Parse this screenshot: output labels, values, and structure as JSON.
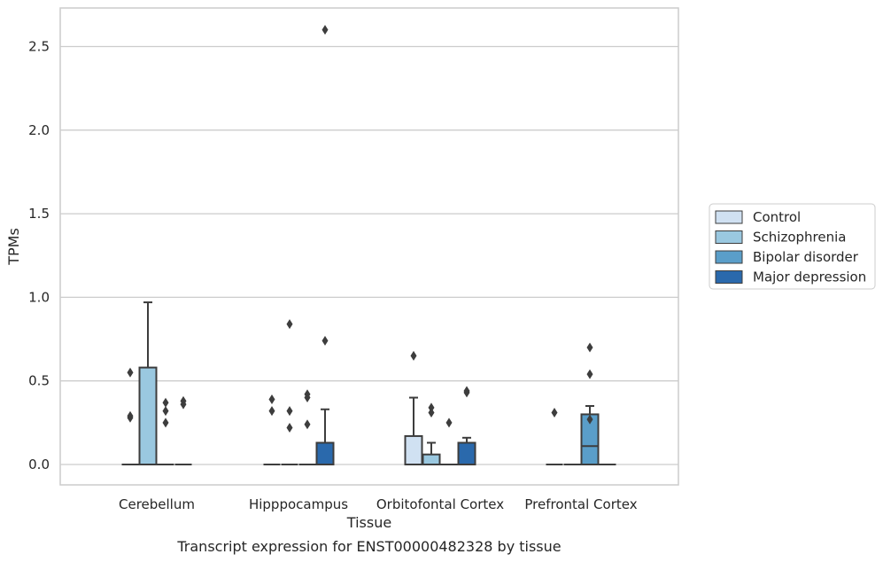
{
  "chart_data": {
    "type": "box",
    "xlabel": "Tissue",
    "ylabel": "TPMs",
    "caption": "Transcript expression for ENST00000482328 by tissue",
    "ylim": [
      -0.13,
      2.7
    ],
    "yticks": [
      0.0,
      0.5,
      1.0,
      1.5,
      2.0,
      2.5
    ],
    "ytick_labels": [
      "0.0",
      "0.5",
      "1.0",
      "1.5",
      "2.0",
      "2.5"
    ],
    "grid": "horizontal",
    "legend_position": "right",
    "categories": [
      "Cerebellum",
      "Hipppocampus",
      "Orbitofontal Cortex",
      "Prefrontal Cortex"
    ],
    "series": [
      {
        "name": "Control",
        "color": "#d0e1f2",
        "boxes": [
          {
            "q1": 0,
            "median": 0,
            "q3": 0,
            "whisker_low": 0,
            "whisker_high": 0,
            "outliers": [
              0.55,
              0.28,
              0.29
            ]
          },
          {
            "q1": 0,
            "median": 0,
            "q3": 0,
            "whisker_low": 0,
            "whisker_high": 0,
            "outliers": [
              0.39,
              0.32
            ]
          },
          {
            "q1": 0,
            "median": 0,
            "q3": 0.17,
            "whisker_low": 0,
            "whisker_high": 0.4,
            "outliers": [
              0.65
            ]
          },
          {
            "q1": 0,
            "median": 0,
            "q3": 0,
            "whisker_low": 0,
            "whisker_high": 0,
            "outliers": [
              0.31
            ]
          }
        ]
      },
      {
        "name": "Schizophrenia",
        "color": "#9ac8e0",
        "boxes": [
          {
            "q1": 0,
            "median": 0,
            "q3": 0.58,
            "whisker_low": 0,
            "whisker_high": 0.97,
            "outliers": []
          },
          {
            "q1": 0,
            "median": 0,
            "q3": 0,
            "whisker_low": 0,
            "whisker_high": 0,
            "outliers": [
              0.84,
              0.32,
              0.22
            ]
          },
          {
            "q1": 0,
            "median": 0,
            "q3": 0.06,
            "whisker_low": 0,
            "whisker_high": 0.13,
            "outliers": [
              0.34,
              0.31
            ]
          },
          {
            "q1": 0,
            "median": 0,
            "q3": 0,
            "whisker_low": 0,
            "whisker_high": 0,
            "outliers": []
          }
        ]
      },
      {
        "name": "Bipolar disorder",
        "color": "#5a9ec9",
        "boxes": [
          {
            "q1": 0,
            "median": 0,
            "q3": 0,
            "whisker_low": 0,
            "whisker_high": 0,
            "outliers": [
              0.37,
              0.32,
              0.25
            ]
          },
          {
            "q1": 0,
            "median": 0,
            "q3": 0,
            "whisker_low": 0,
            "whisker_high": 0,
            "outliers": [
              0.42,
              0.4,
              0.24
            ]
          },
          {
            "q1": 0,
            "median": 0,
            "q3": 0,
            "whisker_low": 0,
            "whisker_high": 0,
            "outliers": [
              0.25
            ]
          },
          {
            "q1": 0,
            "median": 0.11,
            "q3": 0.3,
            "whisker_low": 0,
            "whisker_high": 0.35,
            "outliers": [
              0.7,
              0.54,
              0.27
            ]
          }
        ]
      },
      {
        "name": "Major depression",
        "color": "#2a69ac",
        "boxes": [
          {
            "q1": 0,
            "median": 0,
            "q3": 0,
            "whisker_low": 0,
            "whisker_high": 0,
            "outliers": [
              0.38,
              0.36
            ]
          },
          {
            "q1": 0,
            "median": 0,
            "q3": 0.13,
            "whisker_low": 0,
            "whisker_high": 0.33,
            "outliers": [
              2.6,
              0.74
            ]
          },
          {
            "q1": 0,
            "median": 0,
            "q3": 0.13,
            "whisker_low": 0,
            "whisker_high": 0.16,
            "outliers": [
              0.44,
              0.43
            ]
          },
          {
            "q1": 0,
            "median": 0,
            "q3": 0,
            "whisker_low": 0,
            "whisker_high": 0,
            "outliers": []
          }
        ]
      }
    ]
  }
}
